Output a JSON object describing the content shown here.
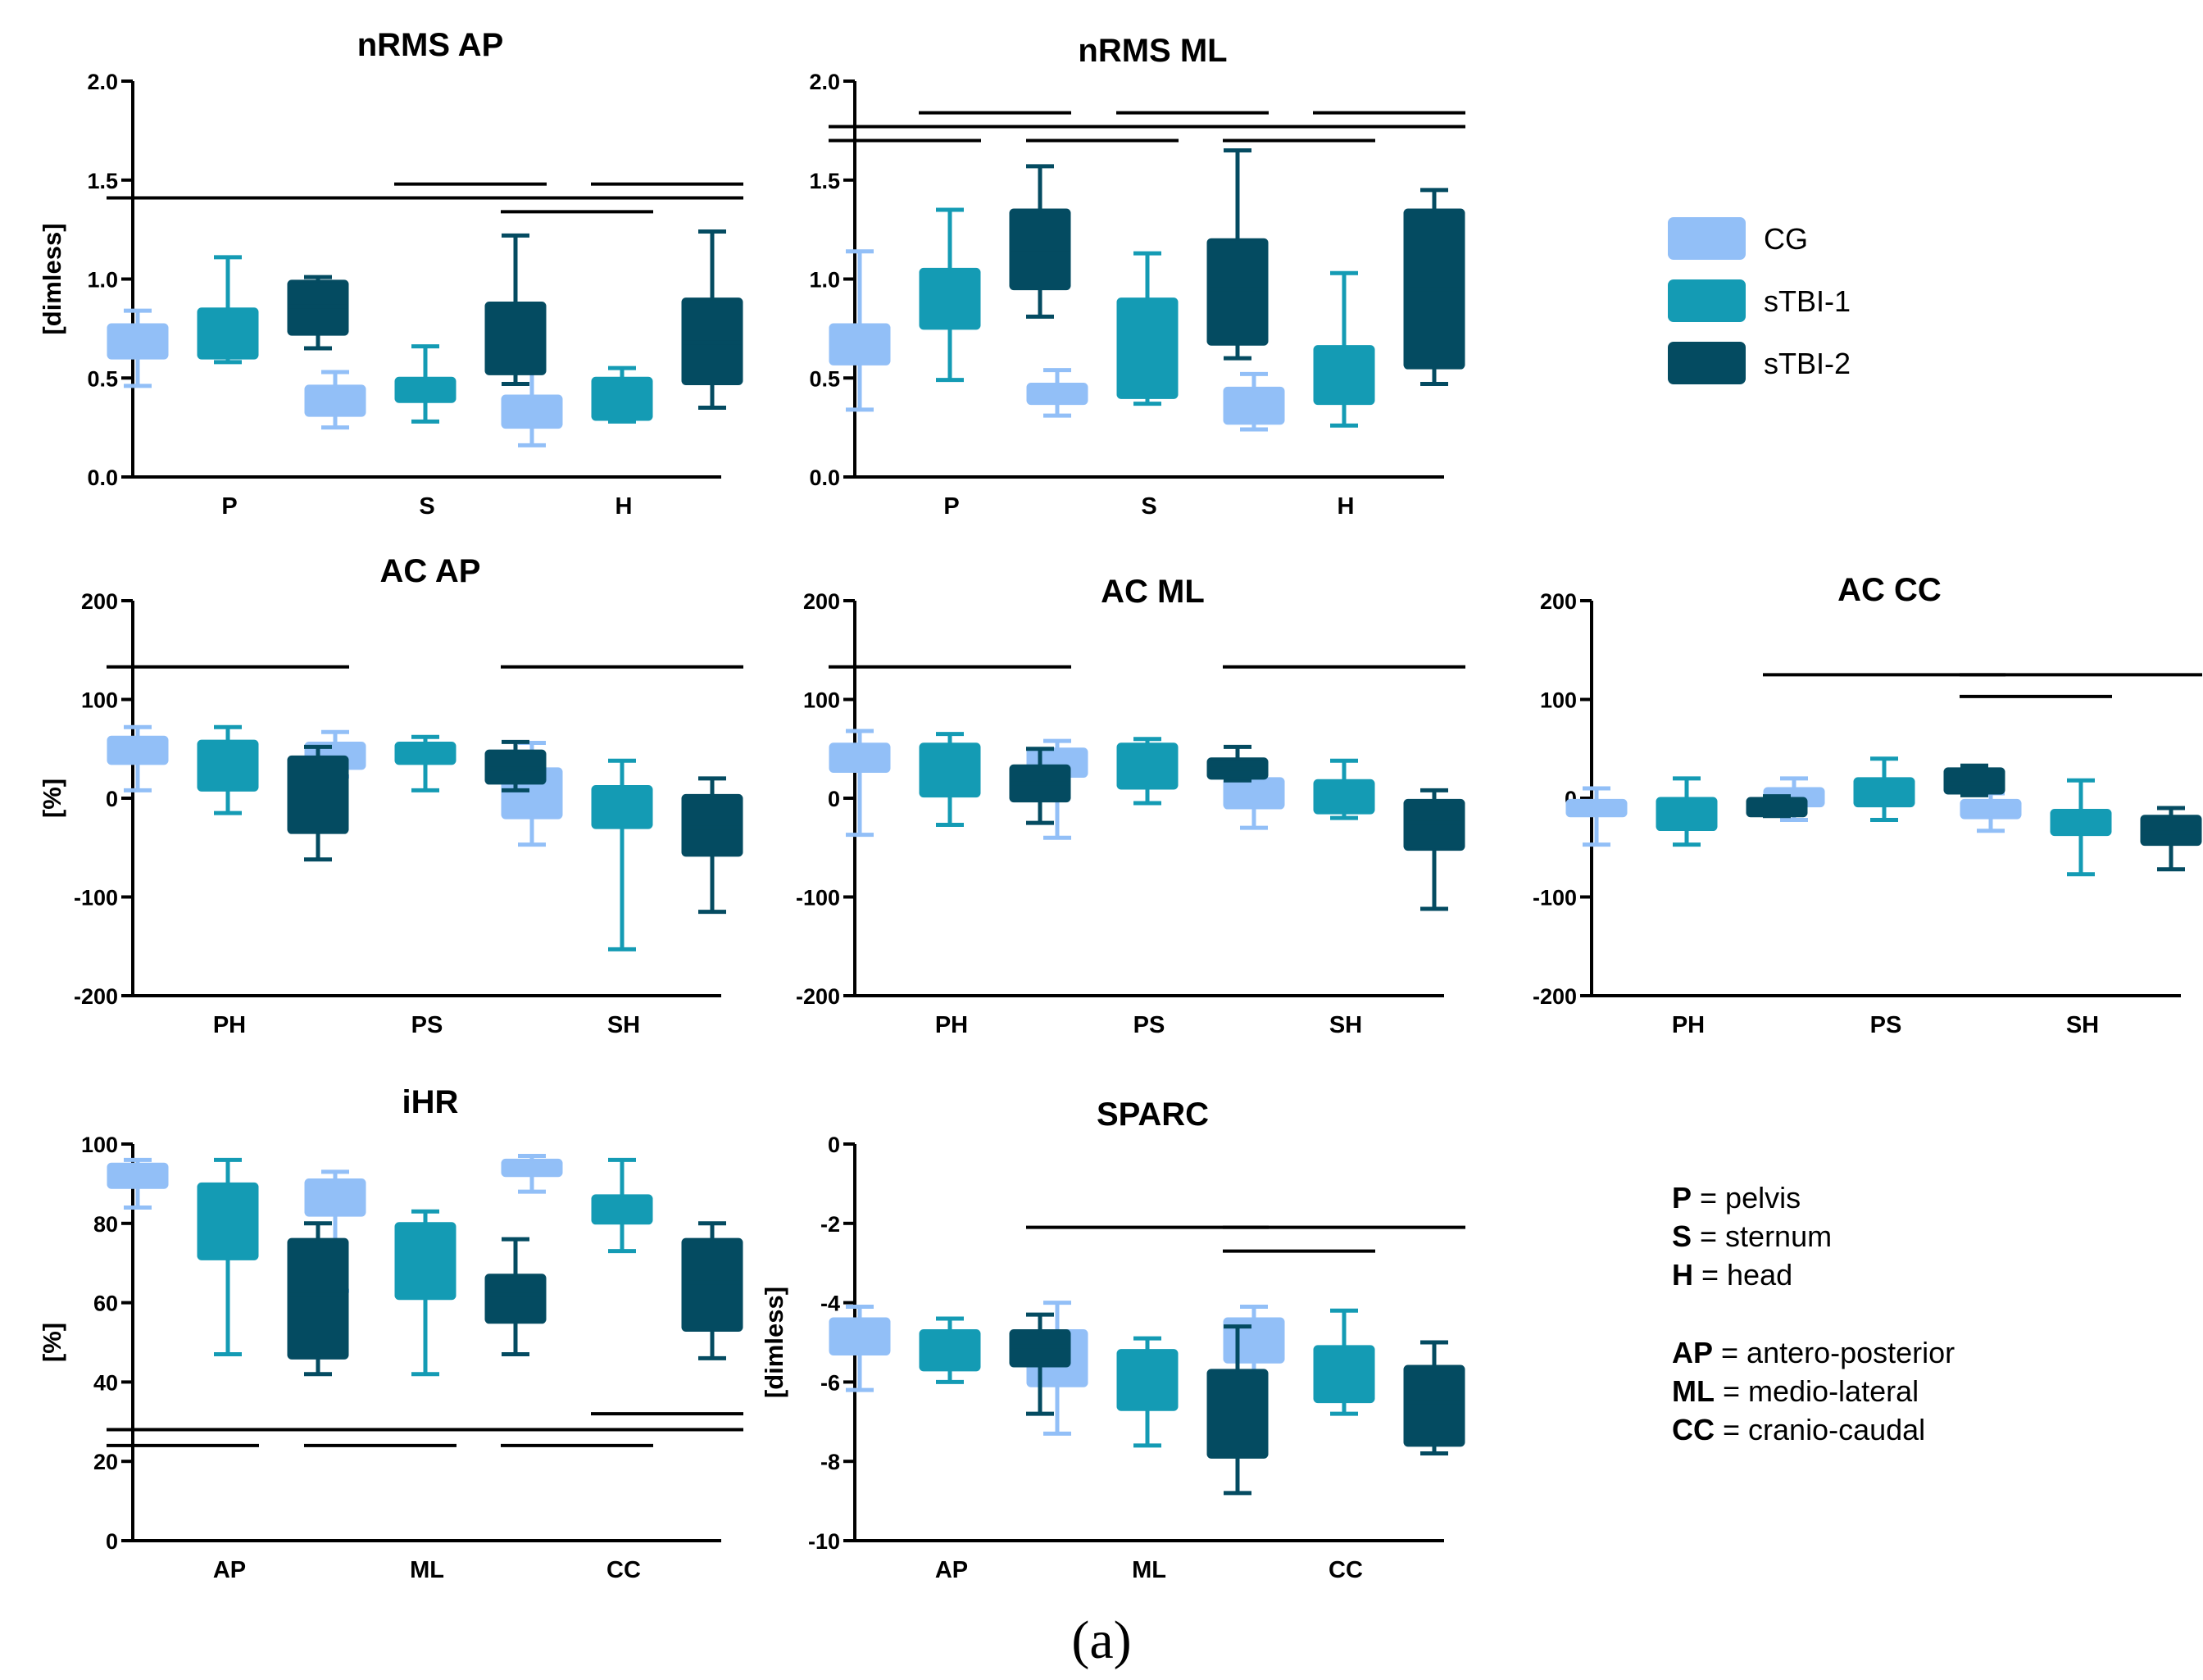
{
  "chart_data": [
    {
      "id": "nrms_ap",
      "type": "box",
      "title": "nRMS AP",
      "ylabel": "[dimless]",
      "ylim": [
        0,
        2.0
      ],
      "yticks": [
        "0.0",
        "0.5",
        "1.0",
        "1.5",
        "2.0"
      ],
      "categories": [
        "P",
        "S",
        "H"
      ],
      "series": [
        {
          "name": "CG",
          "boxes": [
            [
              0.46,
              0.6,
              0.7,
              0.77,
              0.84
            ],
            [
              0.25,
              0.31,
              0.38,
              0.46,
              0.53
            ],
            [
              0.16,
              0.25,
              0.33,
              0.41,
              0.63
            ]
          ]
        },
        {
          "name": "sTBI-1",
          "boxes": [
            [
              0.58,
              0.6,
              0.72,
              0.85,
              1.11
            ],
            [
              0.28,
              0.38,
              0.44,
              0.5,
              0.66
            ],
            [
              0.28,
              0.29,
              0.4,
              0.5,
              0.55
            ]
          ]
        },
        {
          "name": "sTBI-2",
          "boxes": [
            [
              0.65,
              0.72,
              0.86,
              0.99,
              1.01
            ],
            [
              0.47,
              0.52,
              0.7,
              0.88,
              1.22
            ],
            [
              0.35,
              0.47,
              0.68,
              0.9,
              1.24
            ]
          ]
        }
      ],
      "significance": [
        {
          "cat": 0,
          "from": 0,
          "to": 2,
          "y": 1.41
        },
        {
          "cat": 1,
          "from": 0,
          "to": 2,
          "y": 1.41
        },
        {
          "cat": 1,
          "from": 1,
          "to": 2,
          "y": 1.48
        },
        {
          "cat": 2,
          "from": 0,
          "to": 1,
          "y": 1.34
        },
        {
          "cat": 2,
          "from": 0,
          "to": 2,
          "y": 1.41
        },
        {
          "cat": 2,
          "from": 1,
          "to": 2,
          "y": 1.48
        }
      ]
    },
    {
      "id": "nrms_ml",
      "type": "box",
      "title": "nRMS ML",
      "ylabel": "",
      "ylim": [
        0,
        2.0
      ],
      "yticks": [
        "0.0",
        "0.5",
        "1.0",
        "1.5",
        "2.0"
      ],
      "categories": [
        "P",
        "S",
        "H"
      ],
      "series": [
        {
          "name": "CG",
          "boxes": [
            [
              0.34,
              0.57,
              0.68,
              0.77,
              1.14
            ],
            [
              0.31,
              0.37,
              0.42,
              0.47,
              0.54
            ],
            [
              0.24,
              0.27,
              0.35,
              0.45,
              0.52
            ]
          ]
        },
        {
          "name": "sTBI-1",
          "boxes": [
            [
              0.49,
              0.75,
              0.9,
              1.05,
              1.35
            ],
            [
              0.37,
              0.4,
              0.7,
              0.9,
              1.13
            ],
            [
              0.26,
              0.37,
              0.5,
              0.66,
              1.03
            ]
          ]
        },
        {
          "name": "sTBI-2",
          "boxes": [
            [
              0.81,
              0.95,
              1.15,
              1.35,
              1.57
            ],
            [
              0.6,
              0.67,
              0.95,
              1.2,
              1.65
            ],
            [
              0.47,
              0.55,
              0.95,
              1.35,
              1.45
            ]
          ]
        }
      ],
      "significance": [
        {
          "cat": 0,
          "from": 0,
          "to": 1,
          "y": 1.7
        },
        {
          "cat": 0,
          "from": 0,
          "to": 2,
          "y": 1.77
        },
        {
          "cat": 0,
          "from": 1,
          "to": 2,
          "y": 1.84
        },
        {
          "cat": 1,
          "from": 0,
          "to": 1,
          "y": 1.7
        },
        {
          "cat": 1,
          "from": 0,
          "to": 2,
          "y": 1.77
        },
        {
          "cat": 1,
          "from": 1,
          "to": 2,
          "y": 1.84
        },
        {
          "cat": 2,
          "from": 0,
          "to": 1,
          "y": 1.7
        },
        {
          "cat": 2,
          "from": 0,
          "to": 2,
          "y": 1.77
        },
        {
          "cat": 2,
          "from": 1,
          "to": 2,
          "y": 1.84
        }
      ]
    },
    {
      "id": "ac_ap",
      "type": "box",
      "title": "AC AP",
      "ylabel": "[%]",
      "ylim": [
        -200,
        200
      ],
      "yticks": [
        "-200",
        "-100",
        "0",
        "100",
        "200"
      ],
      "categories": [
        "PH",
        "PS",
        "SH"
      ],
      "series": [
        {
          "name": "CG",
          "boxes": [
            [
              8,
              35,
              50,
              62,
              72
            ],
            [
              22,
              30,
              40,
              56,
              67
            ],
            [
              -47,
              -20,
              5,
              30,
              56
            ]
          ]
        },
        {
          "name": "sTBI-1",
          "boxes": [
            [
              -15,
              8,
              35,
              58,
              72
            ],
            [
              8,
              35,
              45,
              56,
              62
            ],
            [
              -153,
              -30,
              -10,
              12,
              38
            ]
          ]
        },
        {
          "name": "sTBI-2",
          "boxes": [
            [
              -62,
              -35,
              10,
              42,
              52
            ],
            [
              8,
              15,
              30,
              48,
              57
            ],
            [
              -115,
              -58,
              -30,
              3,
              20
            ]
          ]
        }
      ],
      "significance": [
        {
          "cat": 0,
          "from": 0,
          "to": 2,
          "y": 133
        },
        {
          "cat": 2,
          "from": 0,
          "to": 2,
          "y": 133
        }
      ]
    },
    {
      "id": "ac_ml",
      "type": "box",
      "title": "AC ML",
      "ylabel": "",
      "ylim": [
        -200,
        200
      ],
      "yticks": [
        "-200",
        "-100",
        "0",
        "100",
        "200"
      ],
      "categories": [
        "PH",
        "PS",
        "SH"
      ],
      "series": [
        {
          "name": "CG",
          "boxes": [
            [
              -37,
              27,
              40,
              55,
              68
            ],
            [
              -40,
              22,
              35,
              50,
              58
            ],
            [
              -30,
              -10,
              5,
              20,
              25
            ]
          ]
        },
        {
          "name": "sTBI-1",
          "boxes": [
            [
              -27,
              2,
              30,
              55,
              65
            ],
            [
              -5,
              10,
              30,
              55,
              60
            ],
            [
              -20,
              -15,
              0,
              18,
              38
            ]
          ]
        },
        {
          "name": "sTBI-2",
          "boxes": [
            [
              -25,
              -3,
              15,
              33,
              50
            ],
            [
              18,
              20,
              30,
              40,
              52
            ],
            [
              -112,
              -52,
              -25,
              -2,
              8
            ]
          ]
        }
      ],
      "significance": [
        {
          "cat": 0,
          "from": 0,
          "to": 2,
          "y": 133
        },
        {
          "cat": 2,
          "from": 0,
          "to": 2,
          "y": 133
        }
      ]
    },
    {
      "id": "ac_cc",
      "type": "box",
      "title": "AC CC",
      "ylabel": "",
      "ylim": [
        -200,
        200
      ],
      "yticks": [
        "-200",
        "-100",
        "0",
        "100",
        "200"
      ],
      "categories": [
        "PH",
        "PS",
        "SH"
      ],
      "series": [
        {
          "name": "CG",
          "boxes": [
            [
              -47,
              -18,
              -10,
              -2,
              10
            ],
            [
              -22,
              -8,
              0,
              10,
              20
            ],
            [
              -33,
              -20,
              -12,
              -2,
              5
            ]
          ]
        },
        {
          "name": "sTBI-1",
          "boxes": [
            [
              -47,
              -32,
              -15,
              0,
              20
            ],
            [
              -22,
              -8,
              5,
              20,
              40
            ],
            [
              -77,
              -37,
              -25,
              -12,
              18
            ]
          ]
        },
        {
          "name": "sTBI-2",
          "boxes": [
            [
              -18,
              -18,
              -10,
              0,
              2
            ],
            [
              3,
              5,
              15,
              30,
              33
            ],
            [
              -72,
              -47,
              -35,
              -18,
              -10
            ]
          ]
        }
      ],
      "significance": [
        {
          "cat": 1,
          "from": 0,
          "to": 2,
          "y": 125
        },
        {
          "cat": 2,
          "from": 0,
          "to": 1,
          "y": 103
        },
        {
          "cat": 2,
          "from": 0,
          "to": 2,
          "y": 125
        }
      ]
    },
    {
      "id": "ihr",
      "type": "box",
      "title": "iHR",
      "ylabel": "[%]",
      "ylim": [
        0,
        100
      ],
      "yticks": [
        "0",
        "20",
        "40",
        "60",
        "80",
        "100"
      ],
      "categories": [
        "AP",
        "ML",
        "CC"
      ],
      "series": [
        {
          "name": "CG",
          "boxes": [
            [
              84,
              89,
              92,
              95,
              96
            ],
            [
              63,
              82,
              88,
              91,
              93
            ],
            [
              88,
              92,
              94,
              96,
              97
            ]
          ]
        },
        {
          "name": "sTBI-1",
          "boxes": [
            [
              47,
              71,
              82,
              90,
              96
            ],
            [
              42,
              61,
              70,
              80,
              83
            ],
            [
              73,
              80,
              84,
              87,
              96
            ]
          ]
        },
        {
          "name": "sTBI-2",
          "boxes": [
            [
              42,
              46,
              62,
              76,
              80
            ],
            [
              47,
              55,
              62,
              67,
              76
            ],
            [
              46,
              53,
              65,
              76,
              80
            ]
          ]
        }
      ],
      "significance": [
        {
          "cat": 0,
          "from": 0,
          "to": 1,
          "y": 24
        },
        {
          "cat": 0,
          "from": 0,
          "to": 2,
          "y": 28
        },
        {
          "cat": 1,
          "from": 0,
          "to": 1,
          "y": 24
        },
        {
          "cat": 1,
          "from": 0,
          "to": 2,
          "y": 28
        },
        {
          "cat": 2,
          "from": 0,
          "to": 1,
          "y": 24
        },
        {
          "cat": 2,
          "from": 0,
          "to": 2,
          "y": 28
        },
        {
          "cat": 2,
          "from": 1,
          "to": 2,
          "y": 32
        }
      ]
    },
    {
      "id": "sparc",
      "type": "box",
      "title": "SPARC",
      "ylabel": "[dimless]",
      "ylim": [
        -10,
        0
      ],
      "yticks": [
        "-10",
        "-8",
        "-6",
        "-4",
        "-2",
        "0"
      ],
      "categories": [
        "AP",
        "ML",
        "CC"
      ],
      "series": [
        {
          "name": "CG",
          "boxes": [
            [
              -6.2,
              -5.3,
              -4.9,
              -4.4,
              -4.1
            ],
            [
              -7.3,
              -6.1,
              -5.4,
              -4.7,
              -4.0
            ],
            [
              -6.5,
              -5.5,
              -4.9,
              -4.4,
              -4.1
            ]
          ]
        },
        {
          "name": "sTBI-1",
          "boxes": [
            [
              -6.0,
              -5.7,
              -5.2,
              -4.7,
              -4.4
            ],
            [
              -7.6,
              -6.7,
              -5.9,
              -5.2,
              -4.9
            ],
            [
              -6.8,
              -6.5,
              -5.8,
              -5.1,
              -4.2
            ]
          ]
        },
        {
          "name": "sTBI-2",
          "boxes": [
            [
              -6.8,
              -5.6,
              -5.1,
              -4.7,
              -4.3
            ],
            [
              -8.8,
              -7.9,
              -6.6,
              -5.7,
              -4.6
            ],
            [
              -7.8,
              -7.6,
              -6.5,
              -5.6,
              -5.0
            ]
          ]
        }
      ],
      "significance": [
        {
          "cat": 1,
          "from": 0,
          "to": 2,
          "y": -2.1
        },
        {
          "cat": 2,
          "from": 0,
          "to": 1,
          "y": -2.7
        },
        {
          "cat": 2,
          "from": 0,
          "to": 2,
          "y": -2.1
        }
      ]
    }
  ],
  "legend": {
    "items": [
      {
        "label": "CG",
        "color": "#92bff7"
      },
      {
        "label": "sTBI-1",
        "color": "#149bb4"
      },
      {
        "label": "sTBI-2",
        "color": "#044b61"
      }
    ]
  },
  "abbreviations": [
    {
      "key": "P",
      "text": "pelvis"
    },
    {
      "key": "S",
      "text": "sternum"
    },
    {
      "key": "H",
      "text": "head"
    },
    {
      "key": "AP",
      "text": "antero-posterior"
    },
    {
      "key": "ML",
      "text": "medio-lateral"
    },
    {
      "key": "CC",
      "text": "cranio-caudal"
    }
  ],
  "panel_label": "(a)"
}
